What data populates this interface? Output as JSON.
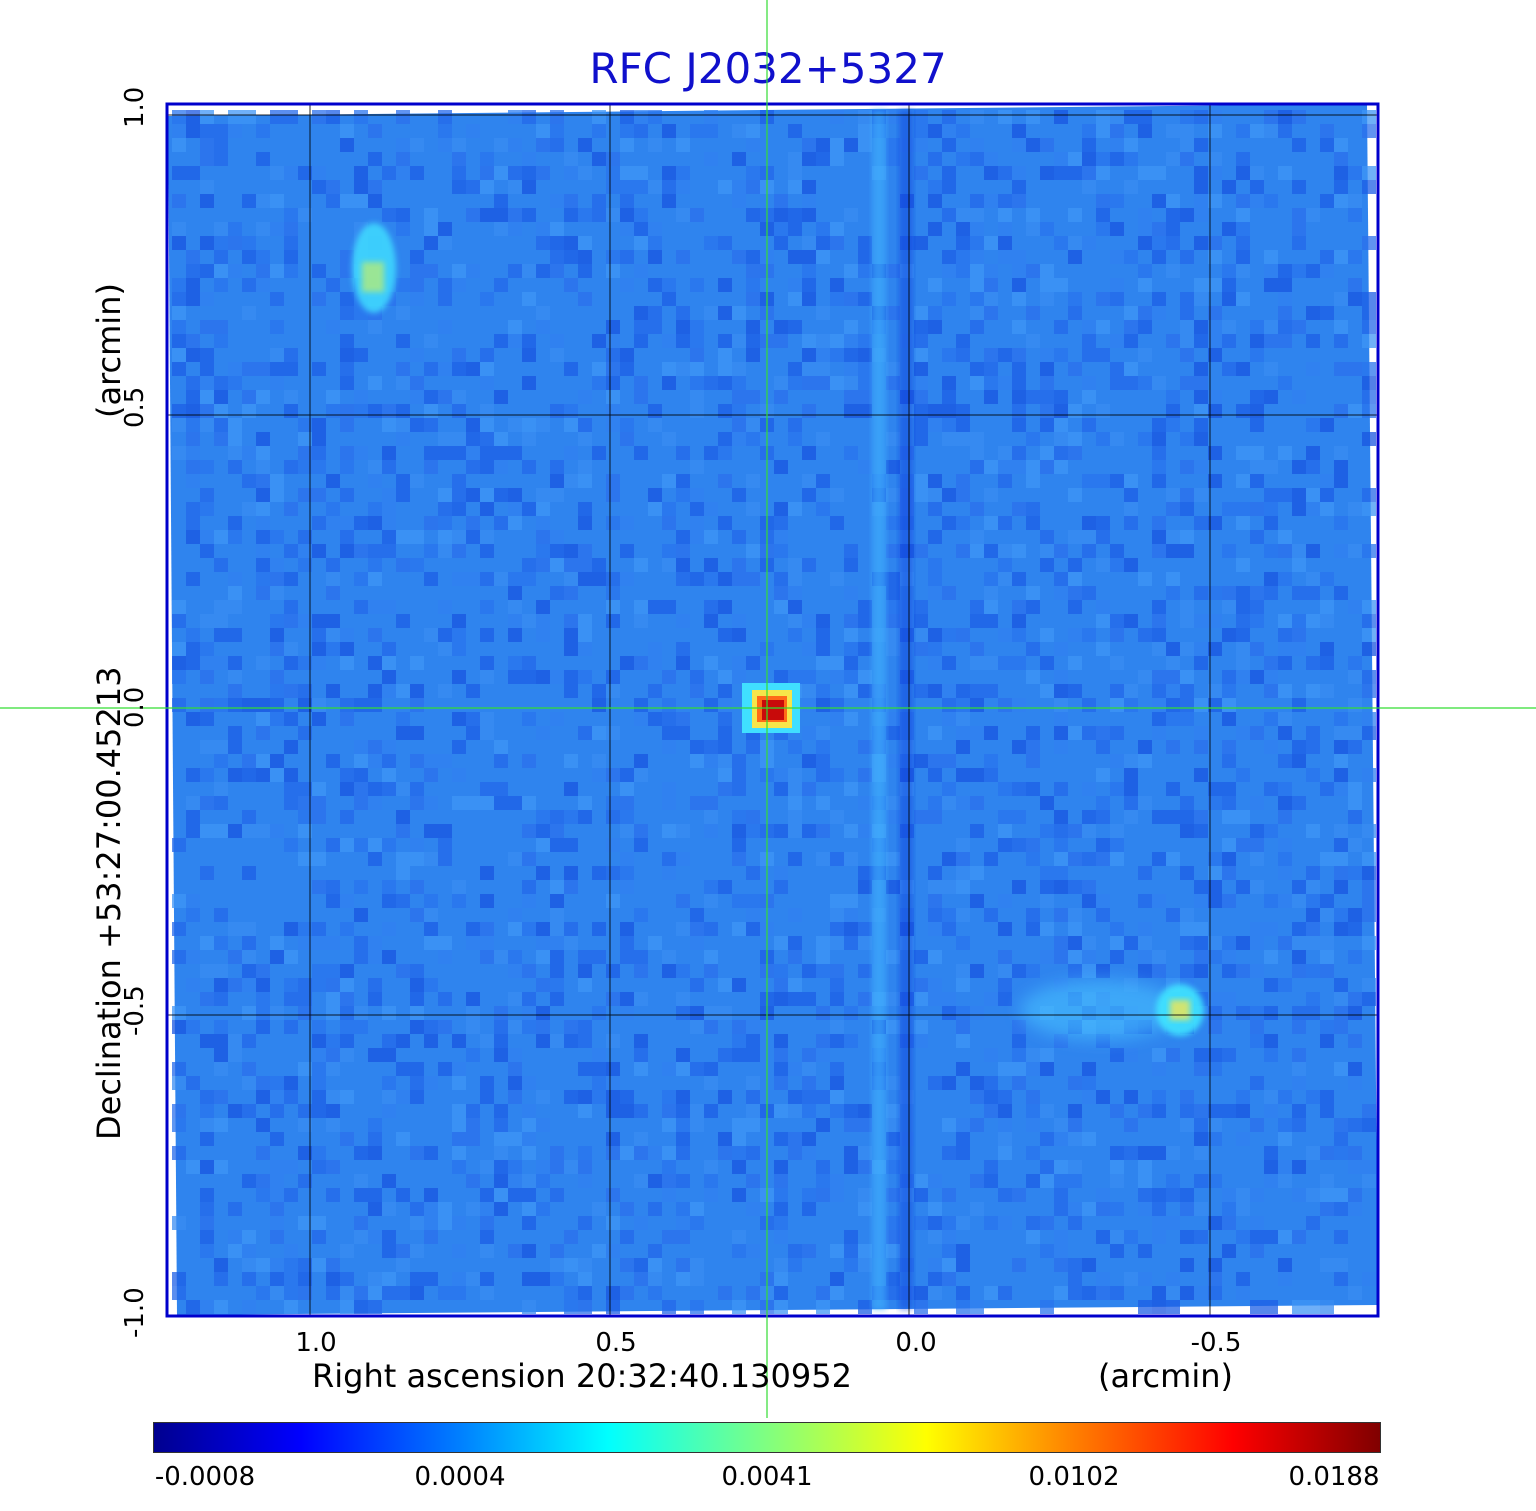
{
  "title": "RFC J2032+5327",
  "x_axis": {
    "label": "Right ascension  20:32:40.130952",
    "unit": "(arcmin)",
    "ticks": [
      "1.0",
      "0.5",
      "0.0",
      "-0.5"
    ]
  },
  "y_axis": {
    "label": "Declination  +53:27:00.45213",
    "unit": "(arcmin)",
    "ticks": [
      "1.0",
      "0.5",
      "0.0",
      "-0.5",
      "-1.0"
    ]
  },
  "colorbar": {
    "ticks": [
      "-0.0008",
      "0.0004",
      "0.0041",
      "0.0102",
      "0.0188"
    ],
    "colormap": "jet"
  },
  "colors": {
    "title": "#1010cc",
    "frame": "#0000cc",
    "crosshair": "#33dd33",
    "grid": "#000000"
  }
}
